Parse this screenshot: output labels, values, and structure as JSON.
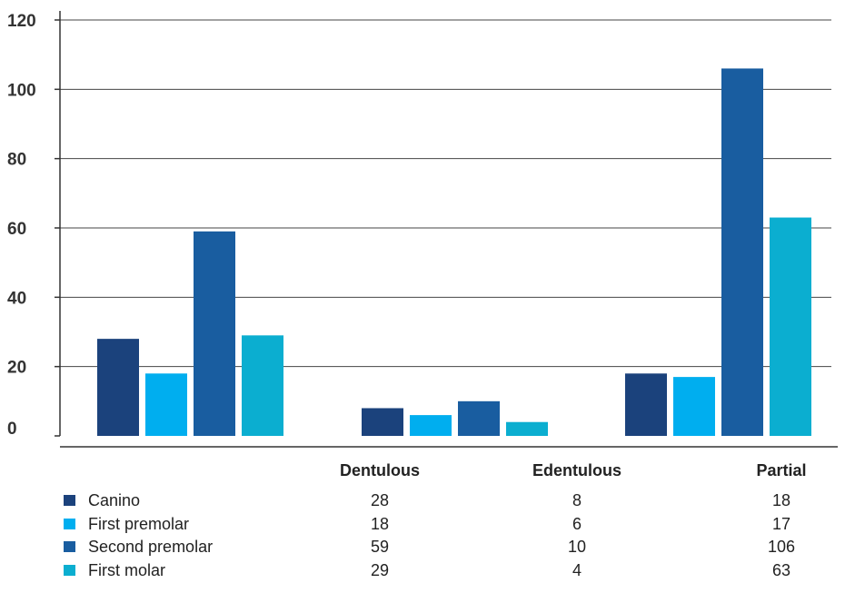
{
  "chart_data": {
    "type": "bar",
    "title": "",
    "xlabel": "",
    "ylabel": "",
    "ylim": [
      0,
      120
    ],
    "yticks": [
      "0",
      "20",
      "40",
      "60",
      "80",
      "100",
      "120"
    ],
    "grid": true,
    "legend": "table-below",
    "categories": [
      "Dentulous",
      "Edentulous",
      "Partial"
    ],
    "series": [
      {
        "name": "Canino",
        "color": "#1b427c",
        "values": [
          28,
          8,
          18
        ]
      },
      {
        "name": "First premolar",
        "color": "#00aeef",
        "values": [
          18,
          6,
          17
        ]
      },
      {
        "name": "Second premolar",
        "color": "#195da0",
        "values": [
          59,
          10,
          106
        ]
      },
      {
        "name": "First molar",
        "color": "#0baed0",
        "values": [
          29,
          4,
          63
        ]
      }
    ]
  }
}
